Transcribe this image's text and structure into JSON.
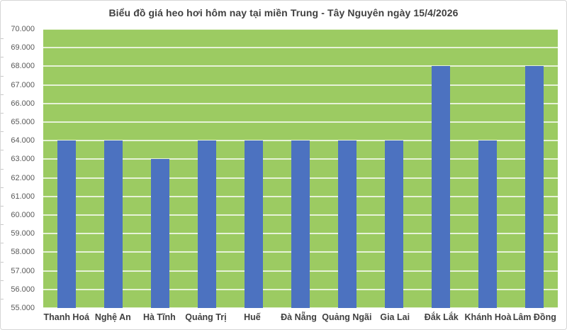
{
  "chart_data": {
    "type": "bar",
    "title": "Biểu đồ giá heo hơi hôm nay tại miền Trung - Tây Nguyên ngày 15/4/2026",
    "categories": [
      "Thanh Hoá",
      "Nghệ An",
      "Hà Tĩnh",
      "Quảng Trị",
      "Huế",
      "Đà Nẵng",
      "Quảng Ngãi",
      "Gia Lai",
      "Đắk Lắk",
      "Khánh Hoà",
      "Lâm Đồng"
    ],
    "values": [
      64000,
      64000,
      63000,
      64000,
      64000,
      64000,
      64000,
      64000,
      68000,
      64000,
      68000
    ],
    "xlabel": "",
    "ylabel": "",
    "ylim": [
      55000,
      70000
    ],
    "ytick_step": 1000,
    "ytick_labels_top_to_bottom": [
      "70.000",
      "69.000",
      "68.000",
      "67.000",
      "66.000",
      "65.000",
      "64.000",
      "63.000",
      "62.000",
      "61.000",
      "60.000",
      "59.000",
      "58.000",
      "57.000",
      "56.000",
      "55.000"
    ],
    "grid": true,
    "legend": "none",
    "colors": {
      "bar": "#4c72c0",
      "plot_background": "#9ccb62",
      "gridline": "rgba(255,255,255,0.75)",
      "title_text": "#404040",
      "axis_text": "#595959",
      "x_axis_text": "#3f3f3f",
      "chart_border": "#d6d6d6",
      "background": "#ffffff"
    }
  }
}
